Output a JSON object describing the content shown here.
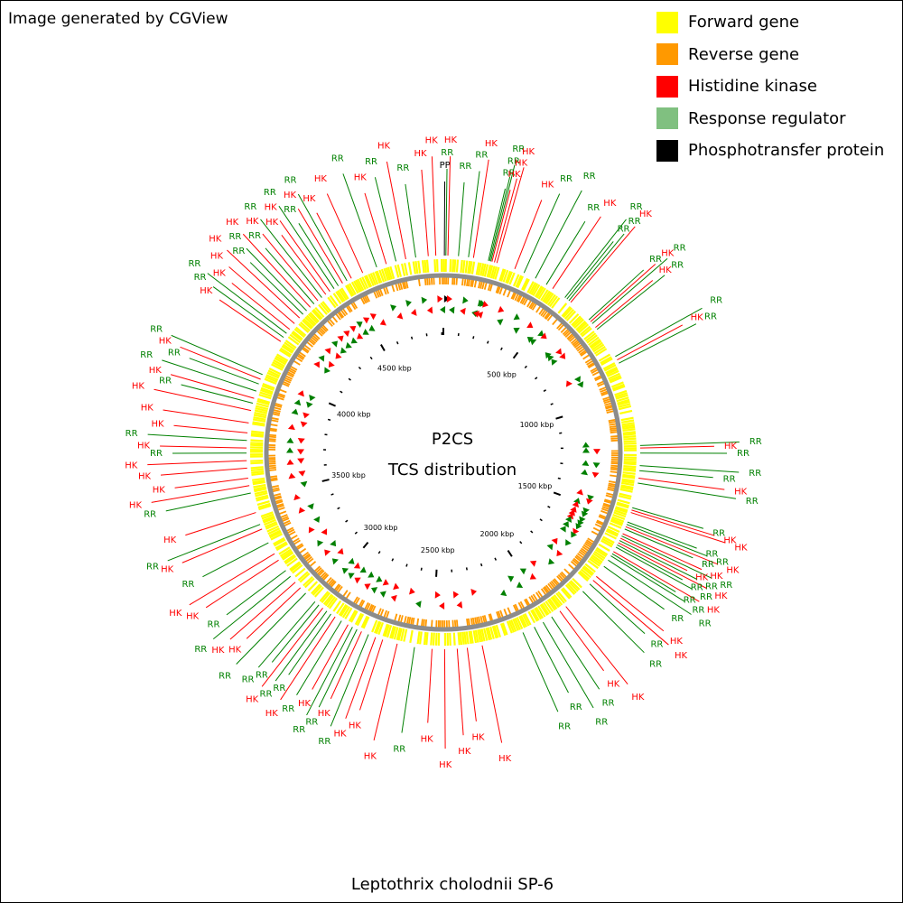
{
  "header": {
    "note": "Image generated by CGView"
  },
  "legend": [
    {
      "label": "Forward gene",
      "color": "#ffff00"
    },
    {
      "label": "Reverse gene",
      "color": "#ff9900"
    },
    {
      "label": "Histidine kinase",
      "color": "#ff0000"
    },
    {
      "label": "Response regulator",
      "color": "#80c080"
    },
    {
      "label": "Phosphotransfer protein",
      "color": "#000000"
    }
  ],
  "map": {
    "title": "P2CS",
    "subtitle": "TCS distribution",
    "genome_length_kbp": 4910,
    "tick_labels": [
      "500 kbp",
      "1000 kbp",
      "1500 kbp",
      "2000 kbp",
      "2500 kbp",
      "3000 kbp",
      "3500 kbp",
      "4000 kbp",
      "4500 kbp"
    ],
    "tick_positions_kbp": [
      500,
      1000,
      1500,
      2000,
      2500,
      3000,
      3500,
      4000,
      4500
    ],
    "colors": {
      "forward": "#ffff00",
      "reverse": "#ff9900",
      "hk": "#ff0000",
      "rr": "#008000",
      "pp": "#000000",
      "backbone": "#8c8c8c"
    },
    "features": [
      {
        "kbp": 4,
        "type": "PP"
      },
      {
        "kbp": 10,
        "type": "RR"
      },
      {
        "kbp": 18,
        "type": "HK"
      },
      {
        "kbp": 60,
        "type": "RR"
      },
      {
        "kbp": 100,
        "type": "RR"
      },
      {
        "kbp": 120,
        "type": "HK"
      },
      {
        "kbp": 180,
        "type": "RR"
      },
      {
        "kbp": 185,
        "type": "RR"
      },
      {
        "kbp": 190,
        "type": "RR"
      },
      {
        "kbp": 195,
        "type": "HK"
      },
      {
        "kbp": 205,
        "type": "HK"
      },
      {
        "kbp": 215,
        "type": "HK"
      },
      {
        "kbp": 290,
        "type": "HK"
      },
      {
        "kbp": 330,
        "type": "RR"
      },
      {
        "kbp": 380,
        "type": "RR"
      },
      {
        "kbp": 430,
        "type": "RR"
      },
      {
        "kbp": 460,
        "type": "HK"
      },
      {
        "kbp": 520,
        "type": "RR"
      },
      {
        "kbp": 530,
        "type": "RR"
      },
      {
        "kbp": 540,
        "type": "RR"
      },
      {
        "kbp": 550,
        "type": "HK"
      },
      {
        "kbp": 650,
        "type": "RR"
      },
      {
        "kbp": 660,
        "type": "HK"
      },
      {
        "kbp": 670,
        "type": "RR"
      },
      {
        "kbp": 690,
        "type": "HK"
      },
      {
        "kbp": 700,
        "type": "RR"
      },
      {
        "kbp": 830,
        "type": "RR"
      },
      {
        "kbp": 845,
        "type": "HK"
      },
      {
        "kbp": 860,
        "type": "RR"
      },
      {
        "kbp": 1200,
        "type": "RR"
      },
      {
        "kbp": 1210,
        "type": "HK"
      },
      {
        "kbp": 1230,
        "type": "RR"
      },
      {
        "kbp": 1280,
        "type": "RR"
      },
      {
        "kbp": 1300,
        "type": "RR"
      },
      {
        "kbp": 1330,
        "type": "HK"
      },
      {
        "kbp": 1350,
        "type": "RR"
      },
      {
        "kbp": 1450,
        "type": "RR"
      },
      {
        "kbp": 1460,
        "type": "HK"
      },
      {
        "kbp": 1470,
        "type": "HK"
      },
      {
        "kbp": 1510,
        "type": "RR"
      },
      {
        "kbp": 1520,
        "type": "RR"
      },
      {
        "kbp": 1530,
        "type": "HK"
      },
      {
        "kbp": 1540,
        "type": "RR"
      },
      {
        "kbp": 1560,
        "type": "HK"
      },
      {
        "kbp": 1570,
        "type": "RR"
      },
      {
        "kbp": 1580,
        "type": "HK"
      },
      {
        "kbp": 1590,
        "type": "RR"
      },
      {
        "kbp": 1600,
        "type": "HK"
      },
      {
        "kbp": 1610,
        "type": "RR"
      },
      {
        "kbp": 1620,
        "type": "RR"
      },
      {
        "kbp": 1640,
        "type": "HK"
      },
      {
        "kbp": 1650,
        "type": "RR"
      },
      {
        "kbp": 1660,
        "type": "RR"
      },
      {
        "kbp": 1680,
        "type": "RR"
      },
      {
        "kbp": 1710,
        "type": "RR"
      },
      {
        "kbp": 1760,
        "type": "HK"
      },
      {
        "kbp": 1780,
        "type": "HK"
      },
      {
        "kbp": 1800,
        "type": "RR"
      },
      {
        "kbp": 1840,
        "type": "RR"
      },
      {
        "kbp": 1930,
        "type": "HK"
      },
      {
        "kbp": 1960,
        "type": "HK"
      },
      {
        "kbp": 2000,
        "type": "RR"
      },
      {
        "kbp": 2040,
        "type": "RR"
      },
      {
        "kbp": 2080,
        "type": "RR"
      },
      {
        "kbp": 2130,
        "type": "RR"
      },
      {
        "kbp": 2300,
        "type": "HK"
      },
      {
        "kbp": 2360,
        "type": "HK"
      },
      {
        "kbp": 2400,
        "type": "HK"
      },
      {
        "kbp": 2450,
        "type": "HK"
      },
      {
        "kbp": 2500,
        "type": "HK"
      },
      {
        "kbp": 2570,
        "type": "RR"
      },
      {
        "kbp": 2640,
        "type": "HK"
      },
      {
        "kbp": 2700,
        "type": "HK"
      },
      {
        "kbp": 2730,
        "type": "HK"
      },
      {
        "kbp": 2760,
        "type": "RR"
      },
      {
        "kbp": 2790,
        "type": "HK"
      },
      {
        "kbp": 2810,
        "type": "RR"
      },
      {
        "kbp": 2830,
        "type": "RR"
      },
      {
        "kbp": 2850,
        "type": "HK"
      },
      {
        "kbp": 2880,
        "type": "RR"
      },
      {
        "kbp": 2910,
        "type": "HK"
      },
      {
        "kbp": 2930,
        "type": "RR"
      },
      {
        "kbp": 2950,
        "type": "RR"
      },
      {
        "kbp": 2970,
        "type": "HK"
      },
      {
        "kbp": 2990,
        "type": "RR"
      },
      {
        "kbp": 3010,
        "type": "RR"
      },
      {
        "kbp": 3060,
        "type": "RR"
      },
      {
        "kbp": 3090,
        "type": "HK"
      },
      {
        "kbp": 3120,
        "type": "HK"
      },
      {
        "kbp": 3150,
        "type": "RR"
      },
      {
        "kbp": 3180,
        "type": "RR"
      },
      {
        "kbp": 3230,
        "type": "HK"
      },
      {
        "kbp": 3260,
        "type": "HK"
      },
      {
        "kbp": 3310,
        "type": "RR"
      },
      {
        "kbp": 3370,
        "type": "HK"
      },
      {
        "kbp": 3390,
        "type": "RR"
      },
      {
        "kbp": 3440,
        "type": "HK"
      },
      {
        "kbp": 3520,
        "type": "RR"
      },
      {
        "kbp": 3550,
        "type": "HK"
      },
      {
        "kbp": 3580,
        "type": "HK"
      },
      {
        "kbp": 3620,
        "type": "HK"
      },
      {
        "kbp": 3650,
        "type": "HK"
      },
      {
        "kbp": 3680,
        "type": "RR"
      },
      {
        "kbp": 3700,
        "type": "HK"
      },
      {
        "kbp": 3730,
        "type": "RR"
      },
      {
        "kbp": 3760,
        "type": "HK"
      },
      {
        "kbp": 3800,
        "type": "HK"
      },
      {
        "kbp": 3850,
        "type": "HK"
      },
      {
        "kbp": 3880,
        "type": "RR"
      },
      {
        "kbp": 3900,
        "type": "HK"
      },
      {
        "kbp": 3930,
        "type": "RR"
      },
      {
        "kbp": 3960,
        "type": "RR"
      },
      {
        "kbp": 3980,
        "type": "HK"
      },
      {
        "kbp": 4000,
        "type": "RR"
      },
      {
        "kbp": 4150,
        "type": "HK"
      },
      {
        "kbp": 4170,
        "type": "RR"
      },
      {
        "kbp": 4190,
        "type": "RR"
      },
      {
        "kbp": 4210,
        "type": "HK"
      },
      {
        "kbp": 4240,
        "type": "HK"
      },
      {
        "kbp": 4270,
        "type": "HK"
      },
      {
        "kbp": 4290,
        "type": "RR"
      },
      {
        "kbp": 4310,
        "type": "RR"
      },
      {
        "kbp": 4330,
        "type": "HK"
      },
      {
        "kbp": 4350,
        "type": "RR"
      },
      {
        "kbp": 4370,
        "type": "HK"
      },
      {
        "kbp": 4390,
        "type": "RR"
      },
      {
        "kbp": 4410,
        "type": "HK"
      },
      {
        "kbp": 4430,
        "type": "HK"
      },
      {
        "kbp": 4450,
        "type": "RR"
      },
      {
        "kbp": 4470,
        "type": "RR"
      },
      {
        "kbp": 4490,
        "type": "HK"
      },
      {
        "kbp": 4510,
        "type": "RR"
      },
      {
        "kbp": 4530,
        "type": "HK"
      },
      {
        "kbp": 4580,
        "type": "HK"
      },
      {
        "kbp": 4640,
        "type": "RR"
      },
      {
        "kbp": 4680,
        "type": "HK"
      },
      {
        "kbp": 4720,
        "type": "RR"
      },
      {
        "kbp": 4760,
        "type": "HK"
      },
      {
        "kbp": 4800,
        "type": "RR"
      },
      {
        "kbp": 4850,
        "type": "HK"
      },
      {
        "kbp": 4880,
        "type": "HK"
      }
    ]
  },
  "footer": {
    "organism": "Leptothrix cholodnii SP-6"
  }
}
